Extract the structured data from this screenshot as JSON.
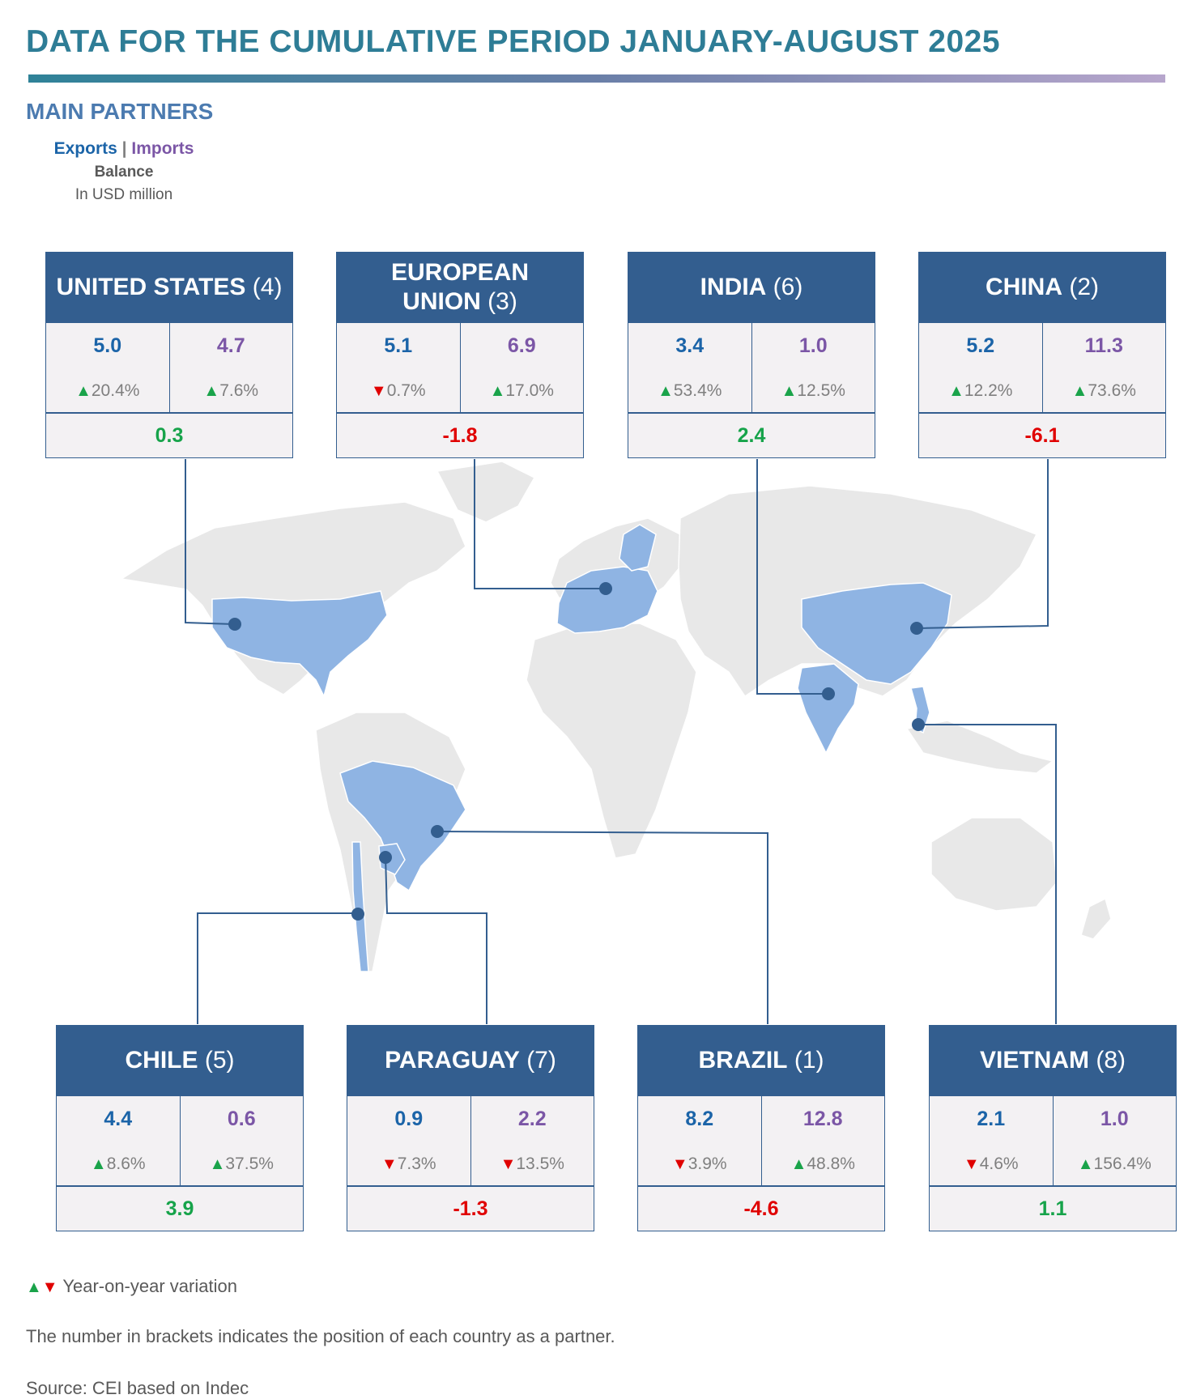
{
  "title": "DATA FOR THE CUMULATIVE PERIOD JANUARY-AUGUST 2025",
  "subtitle": "MAIN PARTNERS",
  "legend": {
    "exports": "Exports",
    "separator": "|",
    "imports": "Imports",
    "balance": "Balance",
    "unit": "In USD million"
  },
  "colors": {
    "exports": "#1b64a8",
    "imports": "#7b56a6",
    "header": "#335e8f",
    "positive": "#16a34a",
    "negative": "#e00000",
    "highlight": "#8fb4e3",
    "land": "#e8e8e8"
  },
  "partners": [
    {
      "name": "UNITED STATES",
      "rank": "(4)",
      "exports": "5.0",
      "exports_dir": "up",
      "exports_var": "20.4%",
      "imports": "4.7",
      "imports_dir": "up",
      "imports_var": "7.6%",
      "balance": "0.3",
      "balance_sign": "pos"
    },
    {
      "name": "EUROPEAN UNION",
      "rank": "(3)",
      "exports": "5.1",
      "exports_dir": "down",
      "exports_var": "0.7%",
      "imports": "6.9",
      "imports_dir": "up",
      "imports_var": "17.0%",
      "balance": "-1.8",
      "balance_sign": "neg"
    },
    {
      "name": "INDIA",
      "rank": "(6)",
      "exports": "3.4",
      "exports_dir": "up",
      "exports_var": "53.4%",
      "imports": "1.0",
      "imports_dir": "up",
      "imports_var": "12.5%",
      "balance": "2.4",
      "balance_sign": "pos"
    },
    {
      "name": "CHINA",
      "rank": "(2)",
      "exports": "5.2",
      "exports_dir": "up",
      "exports_var": "12.2%",
      "imports": "11.3",
      "imports_dir": "up",
      "imports_var": "73.6%",
      "balance": "-6.1",
      "balance_sign": "neg"
    },
    {
      "name": "CHILE",
      "rank": "(5)",
      "exports": "4.4",
      "exports_dir": "up",
      "exports_var": "8.6%",
      "imports": "0.6",
      "imports_dir": "up",
      "imports_var": "37.5%",
      "balance": "3.9",
      "balance_sign": "pos"
    },
    {
      "name": "PARAGUAY",
      "rank": "(7)",
      "exports": "0.9",
      "exports_dir": "down",
      "exports_var": "7.3%",
      "imports": "2.2",
      "imports_dir": "down",
      "imports_var": "13.5%",
      "balance": "-1.3",
      "balance_sign": "neg"
    },
    {
      "name": "BRAZIL",
      "rank": "(1)",
      "exports": "8.2",
      "exports_dir": "down",
      "exports_var": "3.9%",
      "imports": "12.8",
      "imports_dir": "up",
      "imports_var": "48.8%",
      "balance": "-4.6",
      "balance_sign": "neg"
    },
    {
      "name": "VIETNAM",
      "rank": "(8)",
      "exports": "2.1",
      "exports_dir": "down",
      "exports_var": "4.6%",
      "imports": "1.0",
      "imports_dir": "up",
      "imports_var": "156.4%",
      "balance": "1.1",
      "balance_sign": "pos"
    }
  ],
  "footer": {
    "variation": "Year-on-year variation",
    "note": "The number in brackets indicates the position of each country as a partner.",
    "source": "Source: CEI based on Indec"
  }
}
